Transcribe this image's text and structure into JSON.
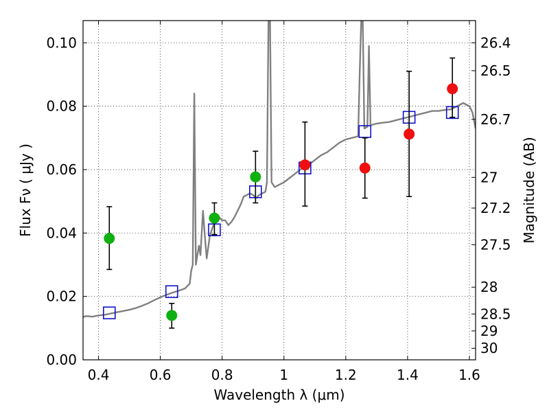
{
  "chart_data": {
    "type": "scatter",
    "xlabel": "Wavelength  λ (μm)",
    "ylabel": "Flux  Fν  ( μJy )",
    "y2label": "Magnitude (AB)",
    "xlim": [
      0.35,
      1.62
    ],
    "ylim": [
      0.0,
      0.107
    ],
    "grid": true,
    "x_ticks": [
      {
        "v": 0.4,
        "label": "0.4"
      },
      {
        "v": 0.6,
        "label": "0.6"
      },
      {
        "v": 0.8,
        "label": "0.8"
      },
      {
        "v": 1.0,
        "label": "1"
      },
      {
        "v": 1.2,
        "label": "1.2"
      },
      {
        "v": 1.4,
        "label": "1.4"
      },
      {
        "v": 1.6,
        "label": "1.6"
      }
    ],
    "y_ticks": [
      {
        "v": 0.0,
        "label": "0.00"
      },
      {
        "v": 0.02,
        "label": "0.02"
      },
      {
        "v": 0.04,
        "label": "0.04"
      },
      {
        "v": 0.06,
        "label": "0.06"
      },
      {
        "v": 0.08,
        "label": "0.08"
      },
      {
        "v": 0.1,
        "label": "0.10"
      }
    ],
    "y2_ticks": [
      {
        "label": "26.4",
        "mag": 26.4
      },
      {
        "label": "26.5",
        "mag": 26.5
      },
      {
        "label": "26.7",
        "mag": 26.7
      },
      {
        "label": "27",
        "mag": 27.0
      },
      {
        "label": "27.2",
        "mag": 27.2
      },
      {
        "label": "27.5",
        "mag": 27.5
      },
      {
        "label": "28",
        "mag": 28.0
      },
      {
        "label": "28.5",
        "mag": 28.5
      },
      {
        "label": "29",
        "mag": 29.0
      },
      {
        "label": "30",
        "mag": 30.0
      }
    ],
    "series": [
      {
        "kind": "line",
        "color": "#808080",
        "points": [
          [
            0.35,
            0.0135
          ],
          [
            0.36,
            0.0138
          ],
          [
            0.38,
            0.0136
          ],
          [
            0.4,
            0.014
          ],
          [
            0.42,
            0.0142
          ],
          [
            0.44,
            0.0146
          ],
          [
            0.46,
            0.015
          ],
          [
            0.48,
            0.0154
          ],
          [
            0.5,
            0.0158
          ],
          [
            0.52,
            0.0163
          ],
          [
            0.54,
            0.017
          ],
          [
            0.56,
            0.0178
          ],
          [
            0.58,
            0.0188
          ],
          [
            0.6,
            0.0197
          ],
          [
            0.62,
            0.0205
          ],
          [
            0.64,
            0.0212
          ],
          [
            0.66,
            0.0218
          ],
          [
            0.68,
            0.0225
          ],
          [
            0.695,
            0.024
          ],
          [
            0.7,
            0.028
          ],
          [
            0.705,
            0.03
          ],
          [
            0.71,
            0.084
          ],
          [
            0.715,
            0.03
          ],
          [
            0.72,
            0.033
          ],
          [
            0.725,
            0.036
          ],
          [
            0.73,
            0.033
          ],
          [
            0.738,
            0.047
          ],
          [
            0.745,
            0.038
          ],
          [
            0.75,
            0.032
          ],
          [
            0.76,
            0.039
          ],
          [
            0.77,
            0.042
          ],
          [
            0.78,
            0.044
          ],
          [
            0.79,
            0.045
          ],
          [
            0.8,
            0.044
          ],
          [
            0.81,
            0.044
          ],
          [
            0.82,
            0.0425
          ],
          [
            0.83,
            0.0435
          ],
          [
            0.84,
            0.045
          ],
          [
            0.85,
            0.047
          ],
          [
            0.86,
            0.049
          ],
          [
            0.87,
            0.0515
          ],
          [
            0.88,
            0.052
          ],
          [
            0.89,
            0.0525
          ],
          [
            0.9,
            0.052
          ],
          [
            0.91,
            0.051
          ],
          [
            0.92,
            0.052
          ],
          [
            0.93,
            0.0525
          ],
          [
            0.94,
            0.053
          ],
          [
            0.945,
            0.056
          ],
          [
            0.95,
            0.107
          ],
          [
            0.955,
            0.107
          ],
          [
            0.96,
            0.056
          ],
          [
            0.97,
            0.0545
          ],
          [
            0.98,
            0.055
          ],
          [
            0.99,
            0.0555
          ],
          [
            1.0,
            0.056
          ],
          [
            1.02,
            0.0575
          ],
          [
            1.04,
            0.059
          ],
          [
            1.06,
            0.0605
          ],
          [
            1.08,
            0.0615
          ],
          [
            1.1,
            0.063
          ],
          [
            1.12,
            0.0645
          ],
          [
            1.14,
            0.0655
          ],
          [
            1.16,
            0.067
          ],
          [
            1.18,
            0.0685
          ],
          [
            1.2,
            0.0695
          ],
          [
            1.22,
            0.07
          ],
          [
            1.24,
            0.0705
          ],
          [
            1.245,
            0.09
          ],
          [
            1.25,
            0.107
          ],
          [
            1.255,
            0.107
          ],
          [
            1.26,
            0.073
          ],
          [
            1.27,
            0.0735
          ],
          [
            1.275,
            0.099
          ],
          [
            1.28,
            0.074
          ],
          [
            1.3,
            0.0745
          ],
          [
            1.32,
            0.0748
          ],
          [
            1.34,
            0.075
          ],
          [
            1.36,
            0.0755
          ],
          [
            1.38,
            0.076
          ],
          [
            1.4,
            0.0765
          ],
          [
            1.42,
            0.077
          ],
          [
            1.44,
            0.0775
          ],
          [
            1.46,
            0.078
          ],
          [
            1.48,
            0.0785
          ],
          [
            1.5,
            0.0785
          ],
          [
            1.52,
            0.0788
          ],
          [
            1.54,
            0.079
          ],
          [
            1.56,
            0.08
          ],
          [
            1.58,
            0.081
          ],
          [
            1.6,
            0.08
          ],
          [
            1.61,
            0.078
          ],
          [
            1.62,
            0.073
          ]
        ]
      },
      {
        "kind": "open-square",
        "color": "#1010cc",
        "points": [
          [
            0.435,
            0.0148
          ],
          [
            0.637,
            0.0215
          ],
          [
            0.775,
            0.041
          ],
          [
            0.908,
            0.053
          ],
          [
            1.068,
            0.0605
          ],
          [
            1.262,
            0.072
          ],
          [
            1.405,
            0.0765
          ],
          [
            1.545,
            0.078
          ]
        ]
      },
      {
        "kind": "errorbar-dot",
        "color": "#10b010",
        "points": [
          {
            "x": 0.435,
            "y": 0.0383,
            "lo": 0.0285,
            "hi": 0.0483
          },
          {
            "x": 0.637,
            "y": 0.014,
            "lo": 0.01,
            "hi": 0.0178
          },
          {
            "x": 0.775,
            "y": 0.0447,
            "lo": 0.0395,
            "hi": 0.0495
          },
          {
            "x": 0.908,
            "y": 0.0577,
            "lo": 0.0495,
            "hi": 0.0658
          }
        ]
      },
      {
        "kind": "errorbar-dot",
        "color": "#ee1010",
        "points": [
          {
            "x": 1.068,
            "y": 0.0615,
            "lo": 0.0485,
            "hi": 0.075
          },
          {
            "x": 1.262,
            "y": 0.0605,
            "lo": 0.051,
            "hi": 0.07
          },
          {
            "x": 1.405,
            "y": 0.0712,
            "lo": 0.0515,
            "hi": 0.091
          },
          {
            "x": 1.545,
            "y": 0.0855,
            "lo": 0.0765,
            "hi": 0.0952
          }
        ]
      }
    ]
  }
}
